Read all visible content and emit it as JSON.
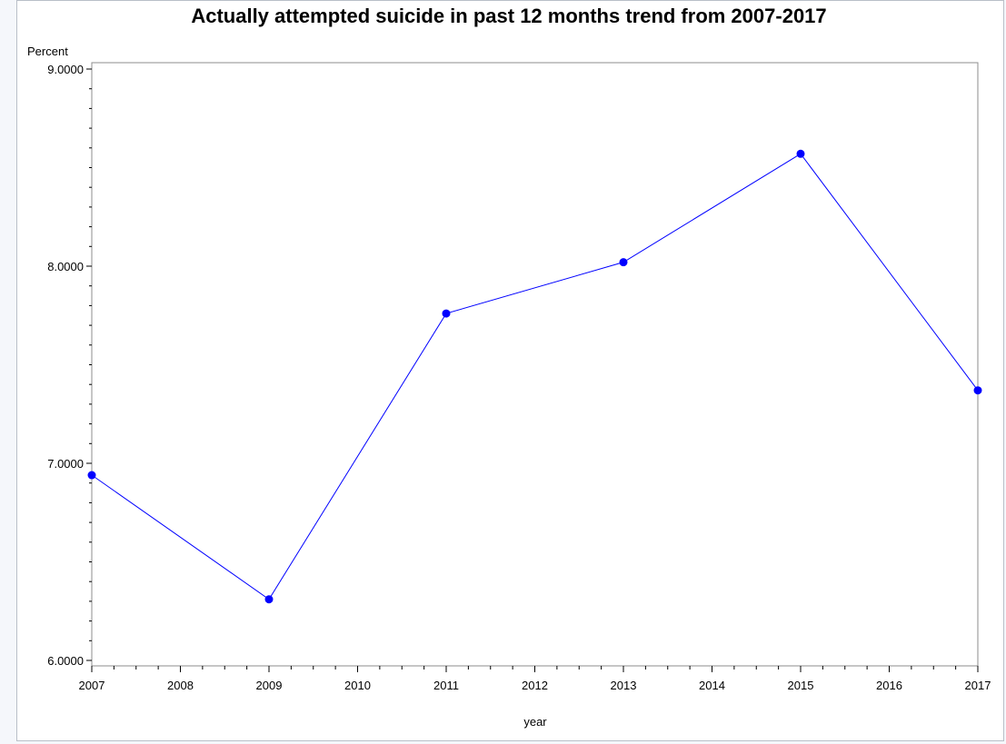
{
  "chart_data": {
    "type": "line",
    "title": "Actually attempted suicide in past 12 months trend from 2007-2017",
    "xlabel": "year",
    "ylabel": "Percent",
    "x": [
      2007,
      2009,
      2011,
      2013,
      2015,
      2017
    ],
    "xticks": [
      2007,
      2008,
      2009,
      2010,
      2011,
      2012,
      2013,
      2014,
      2015,
      2016,
      2017
    ],
    "xlim": [
      2007,
      2017
    ],
    "yticks": [
      "6.0000",
      "7.0000",
      "8.0000",
      "9.0000"
    ],
    "ylim": [
      6,
      9
    ],
    "series": [
      {
        "values": [
          6.94,
          6.31,
          7.76,
          8.02,
          8.57,
          7.37
        ],
        "color": "#0000ff"
      }
    ],
    "grid": false,
    "legend": "none"
  }
}
